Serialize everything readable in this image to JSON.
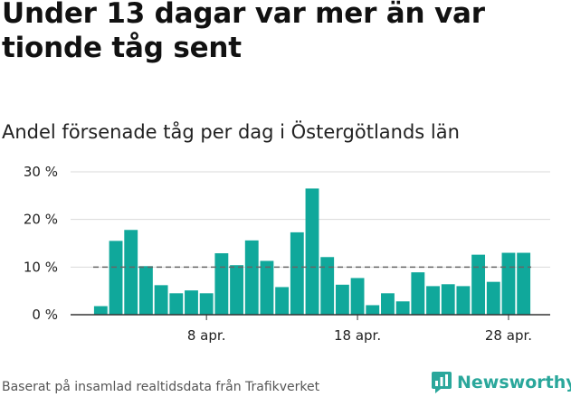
{
  "title": "Under 13 dagar var mer än var tionde tåg sent",
  "subtitle": "Andel försenade tåg per dag i Östergötlands län",
  "footer": "Baserat på insamlad realtidsdata från Trafikverket",
  "brand": {
    "name": "Newsworthy",
    "icon": "newsworthy-logo-icon",
    "color": "#2aa79b"
  },
  "chart_data": {
    "type": "bar",
    "title": "",
    "xlabel": "",
    "ylabel": "",
    "unit": "%",
    "ylim": [
      0,
      30
    ],
    "yticks": [
      0,
      10,
      20,
      30
    ],
    "ytick_labels": [
      "0 %",
      "10 %",
      "20 %",
      "30 %"
    ],
    "xtick_labels": [
      "8 apr.",
      "18 apr.",
      "28 apr."
    ],
    "xtick_dates": [
      "2023-04-08",
      "2023-04-18",
      "2023-04-28"
    ],
    "grid": true,
    "bar_color": "#10a89b",
    "reference_line": {
      "value": 10,
      "style": "dashed",
      "color": "#666666"
    },
    "categories": [
      "2023-04-01",
      "2023-04-02",
      "2023-04-03",
      "2023-04-04",
      "2023-04-05",
      "2023-04-06",
      "2023-04-07",
      "2023-04-08",
      "2023-04-09",
      "2023-04-10",
      "2023-04-11",
      "2023-04-12",
      "2023-04-13",
      "2023-04-14",
      "2023-04-15",
      "2023-04-16",
      "2023-04-17",
      "2023-04-18",
      "2023-04-19",
      "2023-04-20",
      "2023-04-21",
      "2023-04-22",
      "2023-04-23",
      "2023-04-24",
      "2023-04-25",
      "2023-04-26",
      "2023-04-27",
      "2023-04-28",
      "2023-04-29"
    ],
    "values": [
      1.8,
      15.5,
      17.8,
      10.2,
      6.2,
      4.5,
      5.1,
      4.5,
      12.9,
      10.4,
      15.6,
      11.3,
      5.8,
      17.3,
      26.5,
      12.1,
      6.3,
      7.7,
      2.0,
      4.5,
      2.8,
      8.9,
      6.0,
      6.4,
      6.0,
      12.6,
      6.9,
      13.0,
      13.0
    ]
  }
}
